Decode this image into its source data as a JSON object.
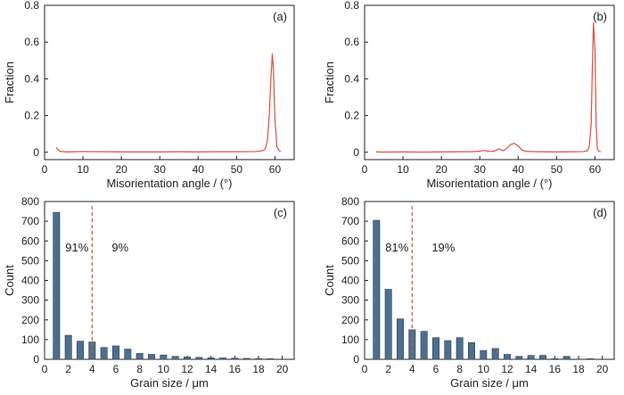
{
  "colors": {
    "line": "#d8503f",
    "bar": "#4d6f8e",
    "bar_edge": "#2b3e52",
    "axis": "#231f20",
    "divider": "#d8503f"
  },
  "chart_data": [
    {
      "panel": "(a)",
      "type": "line",
      "xlabel": "Misorientation angle / (°)",
      "ylabel": "Fraction",
      "xlim": [
        0,
        65
      ],
      "ylim": [
        -0.04,
        0.8
      ],
      "xticks": [
        "0",
        "10",
        "20",
        "30",
        "40",
        "50",
        "60"
      ],
      "yticks": [
        "0",
        "0.2",
        "0.4",
        "0.6",
        "0.8"
      ],
      "series": [
        {
          "x": [
            3,
            3.5,
            4,
            5,
            6,
            8,
            10,
            15,
            20,
            25,
            30,
            35,
            40,
            45,
            50,
            55,
            56,
            57,
            57.5,
            58,
            58.5,
            59,
            59.3,
            59.6,
            60,
            60.5,
            61,
            61.5
          ],
          "y": [
            0.025,
            0.015,
            0.005,
            0.003,
            0.002,
            0.003,
            0.004,
            0.003,
            0.002,
            0.002,
            0.002,
            0.003,
            0.002,
            0.003,
            0.003,
            0.004,
            0.006,
            0.01,
            0.02,
            0.06,
            0.2,
            0.42,
            0.535,
            0.45,
            0.18,
            0.03,
            0.01,
            0.005
          ]
        }
      ]
    },
    {
      "panel": "(b)",
      "type": "line",
      "xlabel": "Misorientation angle / (°)",
      "ylabel": "Fraction",
      "xlim": [
        0,
        65
      ],
      "ylim": [
        -0.04,
        0.8
      ],
      "xticks": [
        "0",
        "10",
        "20",
        "30",
        "40",
        "50",
        "60"
      ],
      "yticks": [
        "0",
        "0.2",
        "0.4",
        "0.6",
        "0.8"
      ],
      "series": [
        {
          "x": [
            3,
            5,
            10,
            15,
            20,
            25,
            28,
            30,
            31,
            32,
            33,
            34,
            35,
            36,
            37,
            38,
            39,
            40,
            41,
            42,
            45,
            50,
            55,
            57,
            58,
            58.5,
            59,
            59.3,
            59.6,
            60,
            60.3,
            60.6,
            61,
            61.5
          ],
          "y": [
            0.002,
            0.001,
            0.002,
            0.001,
            0.002,
            0.003,
            0.003,
            0.006,
            0.01,
            0.006,
            0.004,
            0.008,
            0.018,
            0.008,
            0.02,
            0.042,
            0.048,
            0.035,
            0.012,
            0.005,
            0.003,
            0.002,
            0.003,
            0.004,
            0.008,
            0.03,
            0.15,
            0.45,
            0.705,
            0.55,
            0.15,
            0.02,
            0.006,
            0.003
          ]
        }
      ]
    },
    {
      "panel": "(c)",
      "type": "bar",
      "xlabel": "Grain size / μm",
      "ylabel": "Count",
      "xlim": [
        0,
        21
      ],
      "ylim": [
        0,
        800
      ],
      "xticks": [
        "0",
        "2",
        "4",
        "6",
        "8",
        "10",
        "12",
        "14",
        "16",
        "18",
        "20"
      ],
      "yticks": [
        "0",
        "100",
        "200",
        "300",
        "400",
        "500",
        "600",
        "700",
        "800"
      ],
      "x": [
        1,
        2,
        3,
        4,
        5,
        6,
        7,
        8,
        9,
        10,
        11,
        12,
        13,
        14,
        15,
        16,
        17,
        18,
        19
      ],
      "values": [
        745,
        122,
        92,
        88,
        60,
        68,
        52,
        30,
        25,
        22,
        15,
        12,
        10,
        8,
        7,
        6,
        5,
        4,
        3
      ],
      "divider_x": 4,
      "annotations": [
        "91%",
        "9%"
      ]
    },
    {
      "panel": "(d)",
      "type": "bar",
      "xlabel": "Grain size / μm",
      "ylabel": "Count",
      "xlim": [
        0,
        21
      ],
      "ylim": [
        0,
        800
      ],
      "xticks": [
        "0",
        "2",
        "4",
        "6",
        "8",
        "10",
        "12",
        "14",
        "16",
        "18",
        "20"
      ],
      "yticks": [
        "0",
        "100",
        "200",
        "300",
        "400",
        "500",
        "600",
        "700",
        "800"
      ],
      "x": [
        1,
        2,
        3,
        4,
        5,
        6,
        7,
        8,
        9,
        10,
        11,
        12,
        13,
        14,
        15,
        16,
        17,
        18,
        19
      ],
      "values": [
        705,
        355,
        205,
        150,
        142,
        110,
        95,
        110,
        85,
        45,
        55,
        25,
        15,
        20,
        20,
        3,
        15,
        0,
        3
      ],
      "divider_x": 4,
      "annotations": [
        "81%",
        "19%"
      ]
    }
  ]
}
